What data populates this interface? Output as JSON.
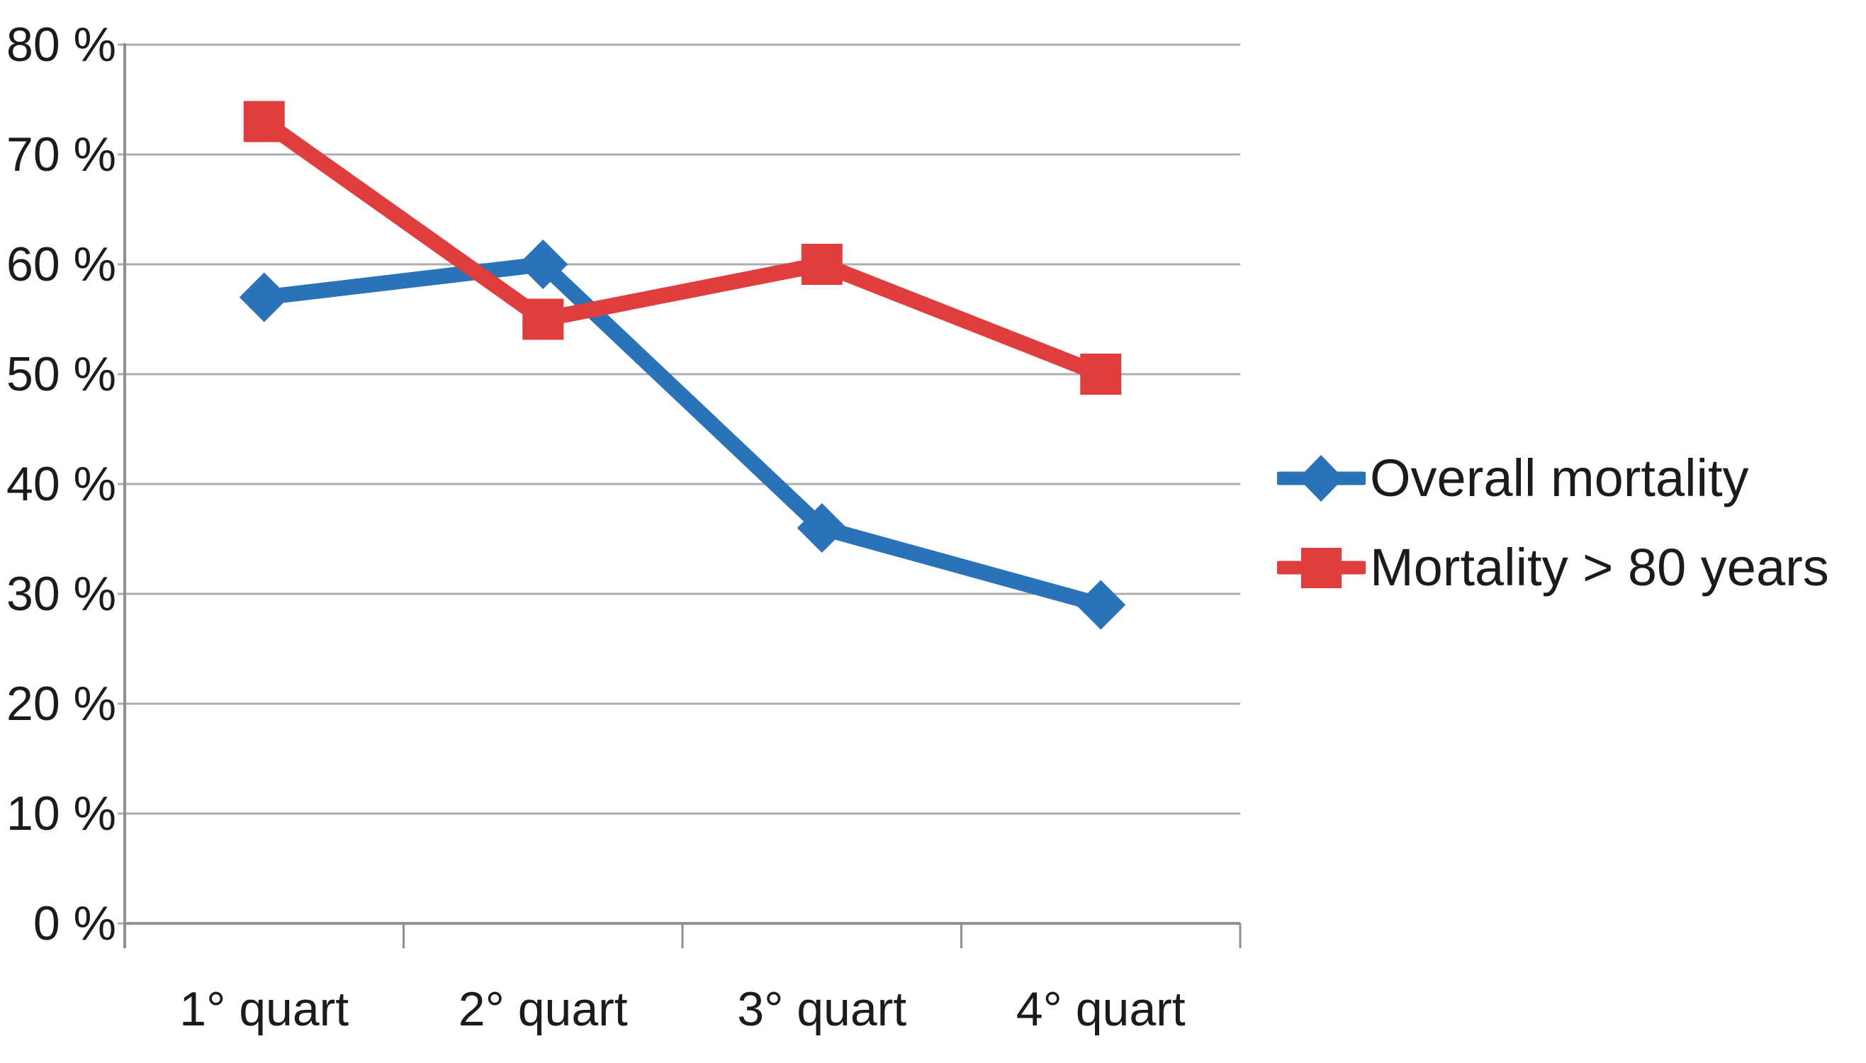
{
  "chart_data": {
    "type": "line",
    "categories": [
      "1° quart",
      "2° quart",
      "3° quart",
      "4° quart"
    ],
    "series": [
      {
        "name": "Overall mortality",
        "values": [
          57,
          60,
          36,
          29
        ],
        "color": "#2a73b8",
        "marker": "diamond"
      },
      {
        "name": "Mortality > 80 years",
        "values": [
          73,
          55,
          60,
          50
        ],
        "color": "#e03e3e",
        "marker": "square"
      }
    ],
    "title": "",
    "xlabel": "",
    "ylabel": "",
    "ylim": [
      0,
      80
    ],
    "y_tick_step": 10,
    "y_tick_labels": [
      "0 %",
      "10 %",
      "20 %",
      "30 %",
      "40 %",
      "50 %",
      "60 %",
      "70 %",
      "80 %"
    ],
    "grid": true,
    "legend_position": "right",
    "colors": {
      "gridline": "#adadad",
      "axis": "#8f8f8f",
      "text": "#1b1b1b",
      "background": "#ffffff"
    }
  }
}
